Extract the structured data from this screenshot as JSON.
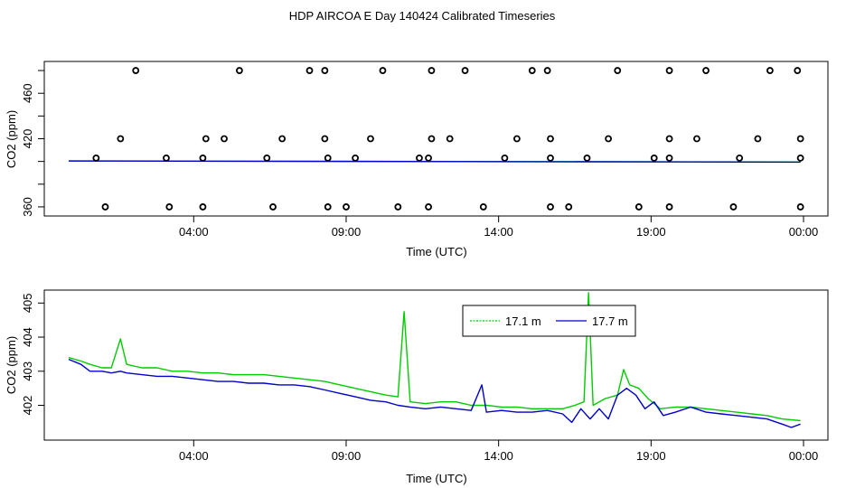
{
  "page": {
    "title": "HDP AIRCOA E  Day 140424  Calibrated Timeseries"
  },
  "chart_data": [
    {
      "type": "scatter",
      "xlabel": "Time (UTC)",
      "ylabel": "CO2 (ppm)",
      "x_unit": "hours since 00:00 UTC",
      "xlim": [
        -0.9,
        24.8
      ],
      "ylim": [
        352,
        488
      ],
      "xticks": [
        4,
        9,
        14,
        19,
        24
      ],
      "xtick_labels": [
        "04:00",
        "09:00",
        "14:00",
        "19:00",
        "00:00"
      ],
      "yticks": [
        360,
        380,
        400,
        420,
        440,
        460,
        480
      ],
      "ytick_labels": [
        "360",
        "",
        "",
        "420",
        "",
        "460",
        ""
      ],
      "grid": false,
      "colors": {
        "series_a": "#00cc00",
        "series_b": "#0000cc",
        "calib_markers": "#000000"
      },
      "calibration_points": [
        {
          "x": 1.1,
          "y": 360
        },
        {
          "x": 2.1,
          "y": 480
        },
        {
          "x": 3.2,
          "y": 360
        },
        {
          "x": 4.3,
          "y": 360
        },
        {
          "x": 5.5,
          "y": 480
        },
        {
          "x": 6.6,
          "y": 360
        },
        {
          "x": 7.8,
          "y": 480
        },
        {
          "x": 8.3,
          "y": 480
        },
        {
          "x": 8.4,
          "y": 360
        },
        {
          "x": 9.0,
          "y": 360
        },
        {
          "x": 10.2,
          "y": 480
        },
        {
          "x": 10.7,
          "y": 360
        },
        {
          "x": 11.8,
          "y": 480
        },
        {
          "x": 11.7,
          "y": 360
        },
        {
          "x": 12.9,
          "y": 480
        },
        {
          "x": 13.5,
          "y": 360
        },
        {
          "x": 15.1,
          "y": 480
        },
        {
          "x": 15.6,
          "y": 480
        },
        {
          "x": 15.7,
          "y": 360
        },
        {
          "x": 16.3,
          "y": 360
        },
        {
          "x": 17.9,
          "y": 480
        },
        {
          "x": 18.6,
          "y": 360
        },
        {
          "x": 19.6,
          "y": 480
        },
        {
          "x": 19.6,
          "y": 360
        },
        {
          "x": 20.8,
          "y": 480
        },
        {
          "x": 21.7,
          "y": 360
        },
        {
          "x": 22.9,
          "y": 480
        },
        {
          "x": 23.8,
          "y": 480
        },
        {
          "x": 23.9,
          "y": 360
        },
        {
          "x": 1.6,
          "y": 420
        },
        {
          "x": 4.4,
          "y": 420
        },
        {
          "x": 5.0,
          "y": 420
        },
        {
          "x": 6.9,
          "y": 420
        },
        {
          "x": 8.3,
          "y": 420
        },
        {
          "x": 9.8,
          "y": 420
        },
        {
          "x": 11.8,
          "y": 420
        },
        {
          "x": 12.4,
          "y": 420
        },
        {
          "x": 14.6,
          "y": 420
        },
        {
          "x": 15.7,
          "y": 420
        },
        {
          "x": 17.6,
          "y": 420
        },
        {
          "x": 19.6,
          "y": 420
        },
        {
          "x": 20.5,
          "y": 420
        },
        {
          "x": 22.5,
          "y": 420
        },
        {
          "x": 23.9,
          "y": 420
        },
        {
          "x": 0.8,
          "y": 403
        },
        {
          "x": 3.1,
          "y": 403
        },
        {
          "x": 4.3,
          "y": 403
        },
        {
          "x": 6.4,
          "y": 403
        },
        {
          "x": 8.4,
          "y": 403
        },
        {
          "x": 9.3,
          "y": 403
        },
        {
          "x": 11.4,
          "y": 403
        },
        {
          "x": 11.7,
          "y": 403
        },
        {
          "x": 14.2,
          "y": 403
        },
        {
          "x": 15.7,
          "y": 403
        },
        {
          "x": 16.9,
          "y": 403
        },
        {
          "x": 19.1,
          "y": 403
        },
        {
          "x": 19.6,
          "y": 403
        },
        {
          "x": 21.9,
          "y": 403
        },
        {
          "x": 23.9,
          "y": 403
        }
      ],
      "series_a_trend": {
        "x": [
          -0.1,
          23.9
        ],
        "y": [
          400.6,
          399.6
        ]
      },
      "series_b_trend": {
        "x": [
          -0.1,
          23.9
        ],
        "y": [
          400.4,
          399.4
        ]
      }
    },
    {
      "type": "line",
      "xlabel": "Time (UTC)",
      "ylabel": "CO2 (ppm)",
      "x_unit": "hours since 00:00 UTC",
      "xlim": [
        -0.9,
        24.8
      ],
      "ylim": [
        400.98,
        405.38
      ],
      "xticks": [
        4,
        9,
        14,
        19,
        24
      ],
      "xtick_labels": [
        "04:00",
        "09:00",
        "14:00",
        "19:00",
        "00:00"
      ],
      "yticks": [
        402,
        403,
        404,
        405
      ],
      "ytick_labels": [
        "402",
        "403",
        "404",
        "405"
      ],
      "grid": false,
      "legend": {
        "placement": "top-right",
        "entries": [
          "17.1 m",
          "17.7 m"
        ]
      },
      "series": [
        {
          "name": "17.1 m",
          "color": "#00cc00",
          "points": [
            [
              -0.1,
              403.4
            ],
            [
              0.3,
              403.3
            ],
            [
              0.6,
              403.2
            ],
            [
              1.0,
              403.1
            ],
            [
              1.3,
              403.1
            ],
            [
              1.6,
              403.95
            ],
            [
              1.8,
              403.2
            ],
            [
              2.3,
              403.1
            ],
            [
              2.8,
              403.1
            ],
            [
              3.3,
              403.0
            ],
            [
              3.8,
              403.0
            ],
            [
              4.3,
              402.95
            ],
            [
              4.8,
              402.95
            ],
            [
              5.3,
              402.9
            ],
            [
              5.8,
              402.9
            ],
            [
              6.3,
              402.9
            ],
            [
              6.8,
              402.85
            ],
            [
              7.3,
              402.8
            ],
            [
              7.8,
              402.75
            ],
            [
              8.3,
              402.7
            ],
            [
              8.8,
              402.6
            ],
            [
              9.3,
              402.5
            ],
            [
              9.8,
              402.4
            ],
            [
              10.3,
              402.3
            ],
            [
              10.7,
              402.25
            ],
            [
              10.9,
              404.75
            ],
            [
              11.1,
              402.1
            ],
            [
              11.6,
              402.05
            ],
            [
              12.1,
              402.1
            ],
            [
              12.6,
              402.1
            ],
            [
              13.1,
              402.0
            ],
            [
              13.6,
              402.0
            ],
            [
              14.1,
              401.95
            ],
            [
              14.6,
              401.95
            ],
            [
              15.1,
              401.9
            ],
            [
              15.6,
              401.9
            ],
            [
              16.1,
              401.9
            ],
            [
              16.5,
              402.0
            ],
            [
              16.8,
              402.1
            ],
            [
              16.95,
              405.3
            ],
            [
              17.1,
              402.0
            ],
            [
              17.5,
              402.2
            ],
            [
              17.9,
              402.3
            ],
            [
              18.1,
              403.05
            ],
            [
              18.3,
              402.6
            ],
            [
              18.6,
              402.5
            ],
            [
              18.9,
              402.2
            ],
            [
              19.3,
              401.9
            ],
            [
              19.8,
              401.95
            ],
            [
              20.3,
              401.95
            ],
            [
              20.8,
              401.9
            ],
            [
              21.3,
              401.85
            ],
            [
              21.8,
              401.8
            ],
            [
              22.3,
              401.75
            ],
            [
              22.8,
              401.7
            ],
            [
              23.3,
              401.6
            ],
            [
              23.9,
              401.55
            ]
          ]
        },
        {
          "name": "17.7 m",
          "color": "#0000cc",
          "points": [
            [
              -0.1,
              403.35
            ],
            [
              0.3,
              403.2
            ],
            [
              0.6,
              403.0
            ],
            [
              1.0,
              403.0
            ],
            [
              1.3,
              402.95
            ],
            [
              1.6,
              403.0
            ],
            [
              1.8,
              402.95
            ],
            [
              2.3,
              402.9
            ],
            [
              2.8,
              402.85
            ],
            [
              3.3,
              402.85
            ],
            [
              3.8,
              402.8
            ],
            [
              4.3,
              402.75
            ],
            [
              4.8,
              402.7
            ],
            [
              5.3,
              402.7
            ],
            [
              5.8,
              402.65
            ],
            [
              6.3,
              402.65
            ],
            [
              6.8,
              402.6
            ],
            [
              7.3,
              402.6
            ],
            [
              7.8,
              402.55
            ],
            [
              8.3,
              402.45
            ],
            [
              8.8,
              402.35
            ],
            [
              9.3,
              402.25
            ],
            [
              9.8,
              402.15
            ],
            [
              10.3,
              402.1
            ],
            [
              10.7,
              402.0
            ],
            [
              11.1,
              401.95
            ],
            [
              11.6,
              401.9
            ],
            [
              12.1,
              401.95
            ],
            [
              12.6,
              401.9
            ],
            [
              13.1,
              401.85
            ],
            [
              13.45,
              402.6
            ],
            [
              13.6,
              401.8
            ],
            [
              14.1,
              401.85
            ],
            [
              14.6,
              401.8
            ],
            [
              15.1,
              401.8
            ],
            [
              15.6,
              401.85
            ],
            [
              16.1,
              401.75
            ],
            [
              16.4,
              401.5
            ],
            [
              16.7,
              401.9
            ],
            [
              17.0,
              401.6
            ],
            [
              17.3,
              401.9
            ],
            [
              17.6,
              401.6
            ],
            [
              17.9,
              402.3
            ],
            [
              18.2,
              402.5
            ],
            [
              18.5,
              402.3
            ],
            [
              18.8,
              401.9
            ],
            [
              19.1,
              402.1
            ],
            [
              19.4,
              401.7
            ],
            [
              19.8,
              401.8
            ],
            [
              20.3,
              401.95
            ],
            [
              20.8,
              401.8
            ],
            [
              21.3,
              401.75
            ],
            [
              21.8,
              401.7
            ],
            [
              22.3,
              401.65
            ],
            [
              22.8,
              401.6
            ],
            [
              23.3,
              401.45
            ],
            [
              23.6,
              401.35
            ],
            [
              23.9,
              401.45
            ]
          ]
        }
      ]
    }
  ]
}
